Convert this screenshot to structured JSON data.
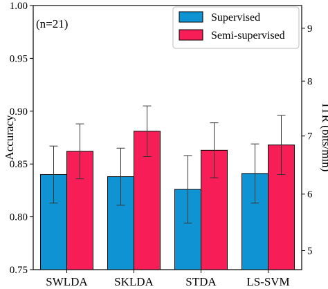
{
  "chart_data": {
    "type": "bar",
    "annotation": "(n=21)",
    "categories": [
      "SWLDA",
      "SKLDA",
      "STDA",
      "LS-SVM"
    ],
    "series": [
      {
        "name": "Supervised",
        "color": "#0f93d3",
        "values": [
          0.84,
          0.838,
          0.826,
          0.841
        ],
        "errors": [
          0.027,
          0.027,
          0.032,
          0.028
        ]
      },
      {
        "name": "Semi-supervised",
        "color": "#f71e58",
        "values": [
          0.862,
          0.881,
          0.863,
          0.868
        ],
        "errors": [
          0.026,
          0.024,
          0.026,
          0.028
        ]
      }
    ],
    "ylabel": "Accuracy",
    "ylim": [
      0.75,
      1.0
    ],
    "yticks": [
      "0.75",
      "0.80",
      "0.85",
      "0.90",
      "0.95",
      "1.00"
    ],
    "y2label": "ITR (bits/min)",
    "y2ticks": [
      "5",
      "6",
      "7",
      "8",
      "9"
    ],
    "y2_tick_values_in_accuracy_units": [
      0.768,
      0.8215,
      0.8765,
      0.9285,
      0.9785
    ],
    "grid": false,
    "legend_position": "top-right"
  }
}
